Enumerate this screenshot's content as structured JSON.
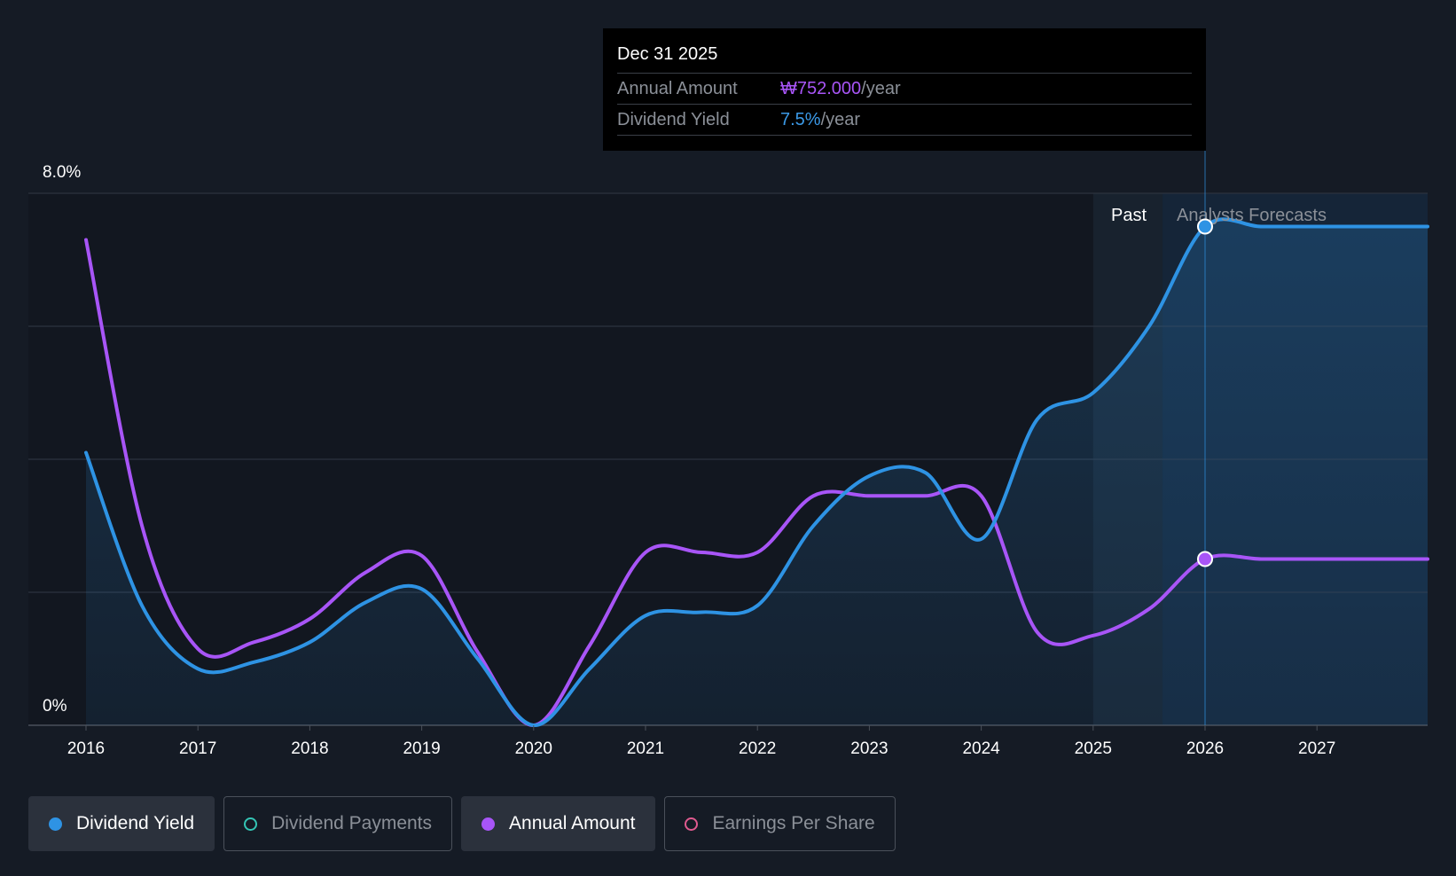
{
  "tooltip": {
    "date": "Dec 31 2025",
    "rows": [
      {
        "label": "Annual Amount",
        "value": "₩752.000",
        "unit": "/year"
      },
      {
        "label": "Dividend Yield",
        "value": "7.5%",
        "unit": "/year"
      }
    ]
  },
  "regions": {
    "past_label": "Past",
    "forecast_label": "Analysts Forecasts"
  },
  "legend": [
    {
      "label": "Dividend Yield",
      "color": "#2e93e4",
      "active": true,
      "filled": true
    },
    {
      "label": "Dividend Payments",
      "color": "#34c5b5",
      "active": false,
      "filled": false
    },
    {
      "label": "Annual Amount",
      "color": "#a855f7",
      "active": true,
      "filled": true
    },
    {
      "label": "Earnings Per Share",
      "color": "#e05a8f",
      "active": false,
      "filled": false
    }
  ],
  "chart_data": {
    "type": "line",
    "title": "",
    "xlabel": "",
    "ylabel": "",
    "x_ticks": [
      "2016",
      "2017",
      "2018",
      "2019",
      "2020",
      "2021",
      "2022",
      "2023",
      "2024",
      "2025",
      "2026",
      "2027"
    ],
    "x_range": [
      2015.5,
      2028.0
    ],
    "y_range": [
      0,
      8
    ],
    "y_tick_labels": [
      "0%",
      "8.0%"
    ],
    "gridlines": [
      0,
      2,
      4,
      6,
      8
    ],
    "past_end": 2025.62,
    "highlight_x": 2026.0,
    "series": [
      {
        "name": "Dividend Yield",
        "color": "#2e93e4",
        "unit": "%",
        "points": [
          [
            2016.0,
            4.1
          ],
          [
            2016.5,
            1.8
          ],
          [
            2017.0,
            0.85
          ],
          [
            2017.5,
            0.95
          ],
          [
            2018.0,
            1.25
          ],
          [
            2018.5,
            1.85
          ],
          [
            2019.0,
            2.05
          ],
          [
            2019.5,
            1.0
          ],
          [
            2020.0,
            0.0
          ],
          [
            2020.5,
            0.85
          ],
          [
            2021.0,
            1.65
          ],
          [
            2021.5,
            1.7
          ],
          [
            2022.0,
            1.8
          ],
          [
            2022.5,
            3.0
          ],
          [
            2023.0,
            3.75
          ],
          [
            2023.5,
            3.8
          ],
          [
            2024.0,
            2.8
          ],
          [
            2024.5,
            4.6
          ],
          [
            2025.0,
            5.0
          ],
          [
            2025.5,
            6.0
          ],
          [
            2026.0,
            7.5
          ],
          [
            2026.5,
            7.5
          ],
          [
            2027.0,
            7.5
          ],
          [
            2027.5,
            7.5
          ],
          [
            2028.0,
            7.5
          ]
        ]
      },
      {
        "name": "Annual Amount",
        "color": "#a855f7",
        "unit": "₩",
        "points": [
          [
            2016.0,
            7.3
          ],
          [
            2016.5,
            3.0
          ],
          [
            2017.0,
            1.15
          ],
          [
            2017.5,
            1.25
          ],
          [
            2018.0,
            1.6
          ],
          [
            2018.5,
            2.3
          ],
          [
            2019.0,
            2.55
          ],
          [
            2019.5,
            1.1
          ],
          [
            2020.0,
            0.0
          ],
          [
            2020.5,
            1.2
          ],
          [
            2021.0,
            2.6
          ],
          [
            2021.5,
            2.6
          ],
          [
            2022.0,
            2.6
          ],
          [
            2022.5,
            3.45
          ],
          [
            2023.0,
            3.45
          ],
          [
            2023.5,
            3.45
          ],
          [
            2024.0,
            3.45
          ],
          [
            2024.5,
            1.4
          ],
          [
            2025.0,
            1.35
          ],
          [
            2025.5,
            1.75
          ],
          [
            2026.0,
            2.5
          ],
          [
            2026.5,
            2.5
          ],
          [
            2027.0,
            2.5
          ],
          [
            2027.5,
            2.5
          ],
          [
            2028.0,
            2.5
          ]
        ]
      }
    ]
  }
}
